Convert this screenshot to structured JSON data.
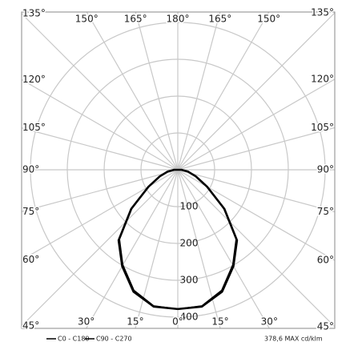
{
  "chart_data": {
    "type": "polar",
    "angles": [
      0,
      10,
      20,
      30,
      40,
      50,
      60,
      70,
      80,
      90,
      100,
      110,
      120,
      130,
      140,
      150,
      160,
      170,
      180
    ],
    "series": [
      {
        "name": "C0 - C180",
        "color": "#000000",
        "values": [
          378,
          377,
          352,
          302,
          250,
          165,
          92,
          52,
          28,
          10,
          0,
          0,
          0,
          0,
          0,
          0,
          0,
          0,
          0
        ]
      },
      {
        "name": "C90 - C270",
        "color": "#000000",
        "values": [
          378,
          375,
          348,
          298,
          246,
          162,
          90,
          50,
          27,
          10,
          0,
          0,
          0,
          0,
          0,
          0,
          0,
          0,
          0
        ]
      }
    ],
    "rlim": [
      0,
      400
    ],
    "rticks": [
      100,
      200,
      300,
      400
    ],
    "left_angle_ticks": [
      {
        "value": 0,
        "label": "0°"
      },
      {
        "value": 15,
        "label": "15°"
      },
      {
        "value": 30,
        "label": "30°"
      },
      {
        "value": 45,
        "label": "45°"
      },
      {
        "value": 60,
        "label": "60°"
      },
      {
        "value": 75,
        "label": "75°"
      },
      {
        "value": 90,
        "label": "90°"
      },
      {
        "value": 105,
        "label": "105°"
      },
      {
        "value": 120,
        "label": "120°"
      },
      {
        "value": 135,
        "label": "135°"
      },
      {
        "value": 150,
        "label": "150°"
      },
      {
        "value": 165,
        "label": "165°"
      },
      {
        "value": 180,
        "label": "180°"
      }
    ],
    "right_angle_ticks": [
      {
        "value": 15,
        "label": "15°"
      },
      {
        "value": 30,
        "label": "30°"
      },
      {
        "value": 45,
        "label": "45°"
      },
      {
        "value": 60,
        "label": "60°"
      },
      {
        "value": 75,
        "label": "75°"
      },
      {
        "value": 90,
        "label": "90°"
      },
      {
        "value": 105,
        "label": "105°"
      },
      {
        "value": 120,
        "label": "120°"
      },
      {
        "value": 135,
        "label": "135°"
      },
      {
        "value": 150,
        "label": "150°"
      },
      {
        "value": 165,
        "label": "165°"
      }
    ],
    "max_label": "378,6 MAX cd/klm"
  }
}
